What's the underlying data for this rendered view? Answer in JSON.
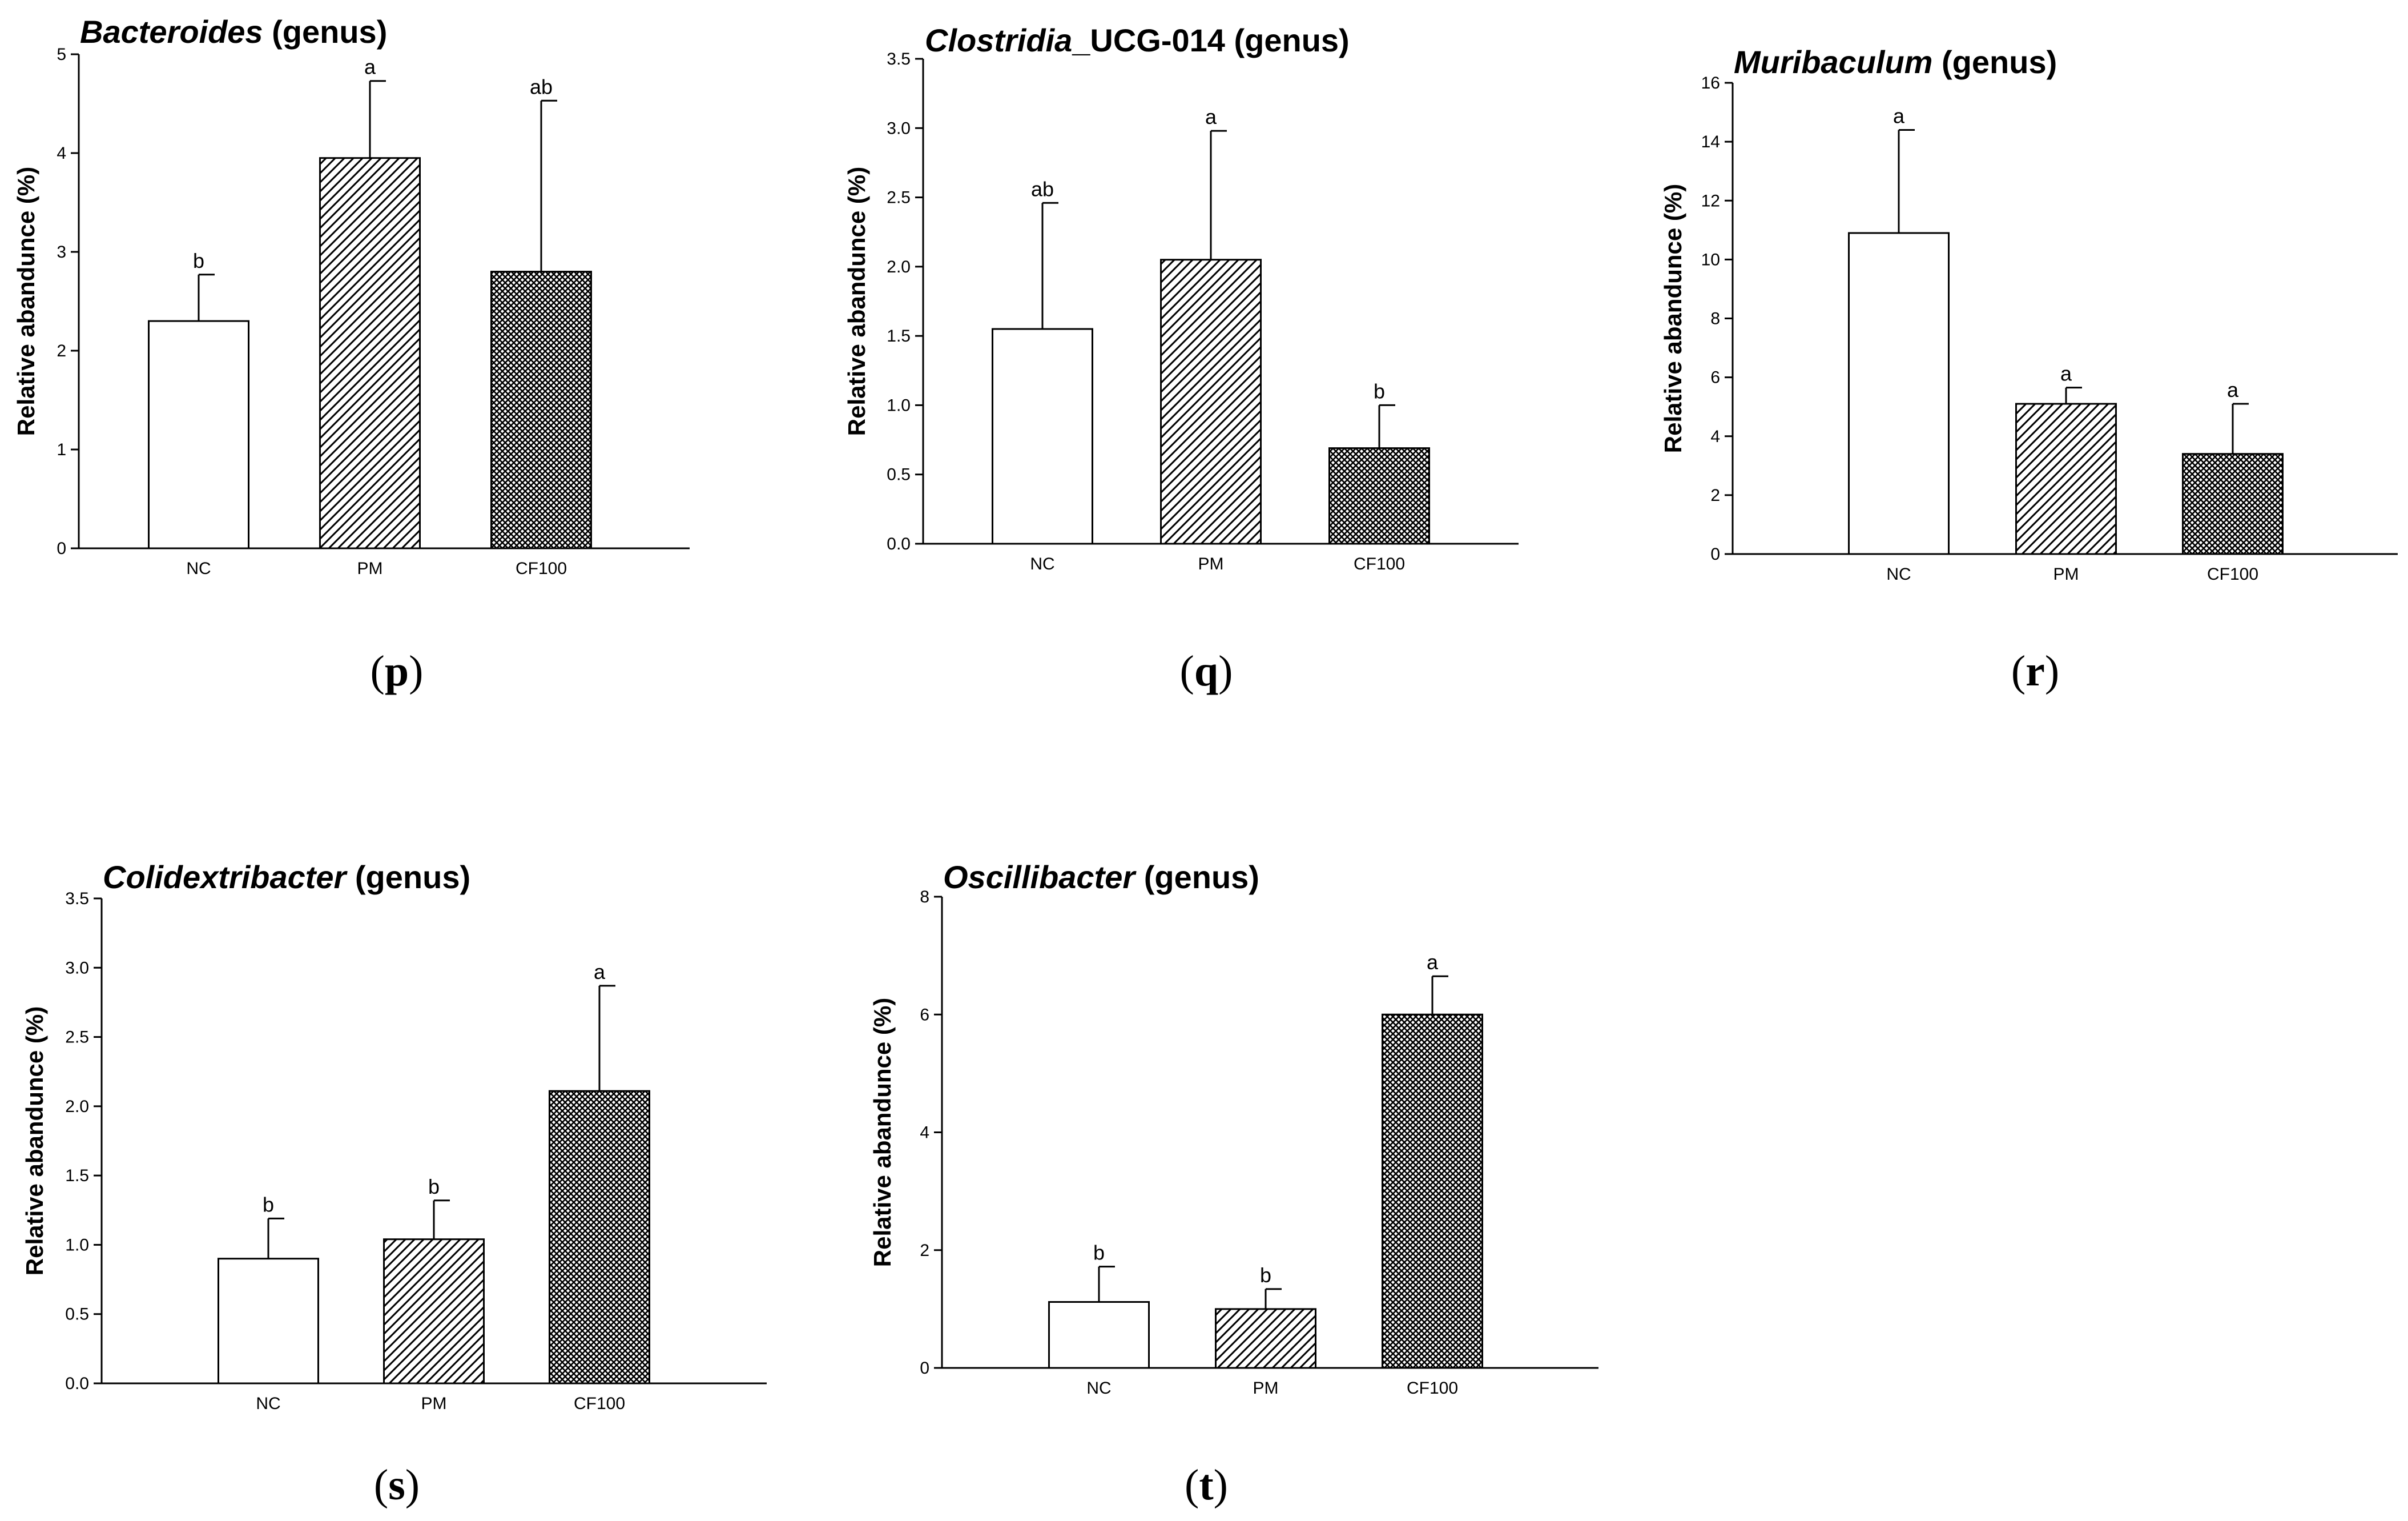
{
  "chart_data": [
    {
      "panel_label": "(p)",
      "type": "bar",
      "title_italic": "Bacteroides",
      "title_rest": " (genus)",
      "ylabel": "Relative abandunce (%)",
      "ylim": [
        0,
        5
      ],
      "yticks": [
        "0",
        "1",
        "2",
        "3",
        "4",
        "5"
      ],
      "categories": [
        "NC",
        "PM",
        "CF100"
      ],
      "values": [
        2.3,
        3.95,
        2.8
      ],
      "errors": [
        0.47,
        0.78,
        1.73
      ],
      "significance": [
        "b",
        "a",
        "ab"
      ],
      "fills": [
        "white",
        "hatch",
        "crosshatch"
      ]
    },
    {
      "panel_label": "(q)",
      "type": "bar",
      "title_italic": "Clostridia",
      "title_rest": "_UCG-014 (genus)",
      "ylabel": "Relative abandunce (%)",
      "ylim": [
        0,
        3.5
      ],
      "yticks": [
        "0.0",
        "0.5",
        "1.0",
        "1.5",
        "2.0",
        "2.5",
        "3.0",
        "3.5"
      ],
      "categories": [
        "NC",
        "PM",
        "CF100"
      ],
      "values": [
        1.55,
        2.05,
        0.69
      ],
      "errors": [
        0.91,
        0.93,
        0.31
      ],
      "significance": [
        "ab",
        "a",
        "b"
      ],
      "fills": [
        "white",
        "hatch",
        "crosshatch"
      ]
    },
    {
      "panel_label": "(r)",
      "type": "bar",
      "title_italic": "Muribaculum",
      "title_rest": " (genus)",
      "ylabel": "Relative abandunce (%)",
      "ylim": [
        0,
        16
      ],
      "yticks": [
        "0",
        "2",
        "4",
        "6",
        "8",
        "10",
        "12",
        "14",
        "16"
      ],
      "categories": [
        "NC",
        "PM",
        "CF100"
      ],
      "values": [
        10.9,
        5.1,
        3.4
      ],
      "errors": [
        3.5,
        0.55,
        1.7
      ],
      "significance": [
        "a",
        "a",
        "a"
      ],
      "fills": [
        "white",
        "hatch",
        "crosshatch"
      ]
    },
    {
      "panel_label": "(s)",
      "type": "bar",
      "title_italic": "Colidextribacter",
      "title_rest": " (genus)",
      "ylabel": "Relative abandunce (%)",
      "ylim": [
        0,
        3.5
      ],
      "yticks": [
        "0.0",
        "0.5",
        "1.0",
        "1.5",
        "2.0",
        "2.5",
        "3.0",
        "3.5"
      ],
      "categories": [
        "NC",
        "PM",
        "CF100"
      ],
      "values": [
        0.9,
        1.04,
        2.11
      ],
      "errors": [
        0.29,
        0.28,
        0.76
      ],
      "significance": [
        "b",
        "b",
        "a"
      ],
      "fills": [
        "white",
        "hatch",
        "crosshatch"
      ]
    },
    {
      "panel_label": "(t)",
      "type": "bar",
      "title_italic": "Oscillibacter",
      "title_rest": " (genus)",
      "ylabel": "Relative abandunce (%)",
      "ylim": [
        0,
        8
      ],
      "yticks": [
        "0",
        "2",
        "4",
        "6",
        "8"
      ],
      "categories": [
        "NC",
        "PM",
        "CF100"
      ],
      "values": [
        1.12,
        1.0,
        6.0
      ],
      "errors": [
        0.6,
        0.34,
        0.65
      ],
      "significance": [
        "b",
        "b",
        "a"
      ],
      "fills": [
        "white",
        "hatch",
        "crosshatch"
      ]
    }
  ]
}
